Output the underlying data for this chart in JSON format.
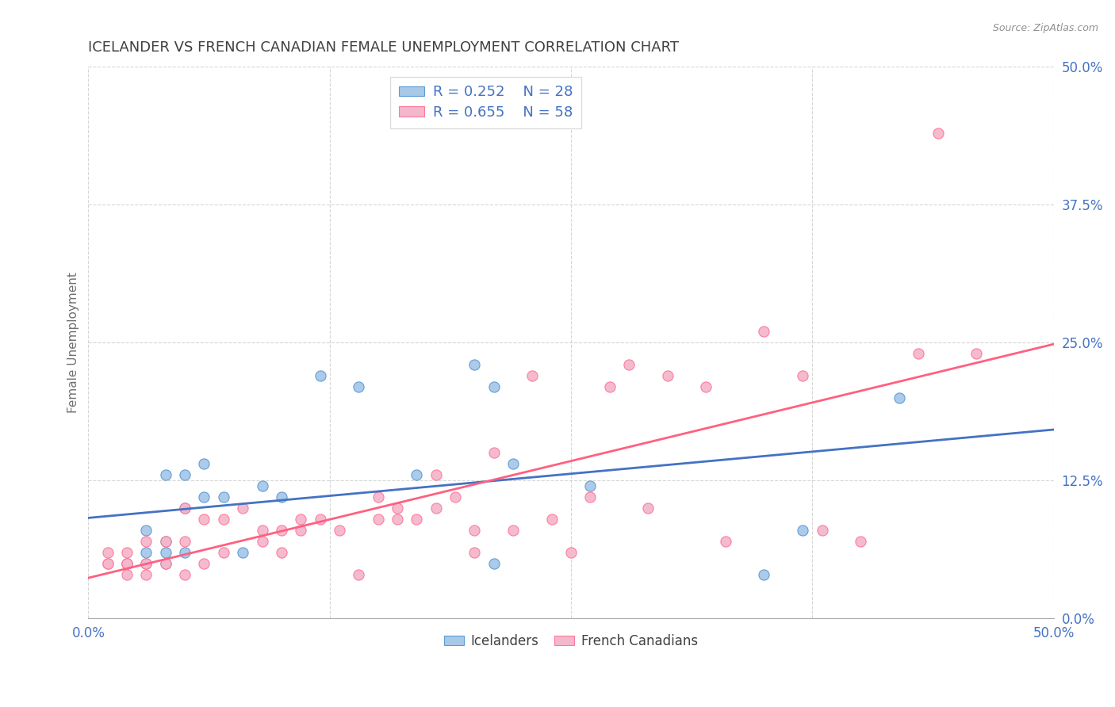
{
  "title": "ICELANDER VS FRENCH CANADIAN FEMALE UNEMPLOYMENT CORRELATION CHART",
  "source": "Source: ZipAtlas.com",
  "ylabel": "Female Unemployment",
  "ytick_labels": [
    "0.0%",
    "12.5%",
    "25.0%",
    "37.5%",
    "50.0%"
  ],
  "ytick_values": [
    0.0,
    0.125,
    0.25,
    0.375,
    0.5
  ],
  "xtick_show": [
    0.0,
    0.5
  ],
  "xtick_all": [
    0.0,
    0.125,
    0.25,
    0.375,
    0.5
  ],
  "xlim": [
    0.0,
    0.5
  ],
  "ylim": [
    0.0,
    0.5
  ],
  "legend_label_blue": "Icelanders",
  "legend_label_pink": "French Canadians",
  "blue_fill_color": "#A8C8E8",
  "pink_fill_color": "#F4B8CC",
  "blue_edge_color": "#5B9BD5",
  "pink_edge_color": "#FF7799",
  "blue_line_color": "#4472C4",
  "pink_line_color": "#FF6080",
  "title_color": "#404040",
  "axis_label_color": "#4472C4",
  "grid_color": "#CCCCCC",
  "background_color": "#FFFFFF",
  "icelander_x": [
    0.02,
    0.03,
    0.03,
    0.03,
    0.04,
    0.04,
    0.04,
    0.04,
    0.05,
    0.05,
    0.05,
    0.06,
    0.06,
    0.07,
    0.08,
    0.09,
    0.1,
    0.12,
    0.14,
    0.17,
    0.2,
    0.21,
    0.21,
    0.22,
    0.26,
    0.35,
    0.37,
    0.42
  ],
  "icelander_y": [
    0.05,
    0.05,
    0.06,
    0.08,
    0.05,
    0.06,
    0.07,
    0.13,
    0.06,
    0.1,
    0.13,
    0.11,
    0.14,
    0.11,
    0.06,
    0.12,
    0.11,
    0.22,
    0.21,
    0.13,
    0.23,
    0.05,
    0.21,
    0.14,
    0.12,
    0.04,
    0.08,
    0.2
  ],
  "french_x": [
    0.01,
    0.01,
    0.01,
    0.02,
    0.02,
    0.02,
    0.02,
    0.03,
    0.03,
    0.03,
    0.04,
    0.04,
    0.05,
    0.05,
    0.05,
    0.06,
    0.06,
    0.07,
    0.07,
    0.08,
    0.09,
    0.09,
    0.1,
    0.1,
    0.11,
    0.11,
    0.12,
    0.13,
    0.14,
    0.15,
    0.15,
    0.16,
    0.16,
    0.17,
    0.18,
    0.18,
    0.19,
    0.2,
    0.2,
    0.21,
    0.22,
    0.23,
    0.24,
    0.25,
    0.26,
    0.27,
    0.28,
    0.29,
    0.3,
    0.32,
    0.33,
    0.35,
    0.37,
    0.38,
    0.4,
    0.43,
    0.44,
    0.46
  ],
  "french_y": [
    0.05,
    0.05,
    0.06,
    0.04,
    0.05,
    0.05,
    0.06,
    0.04,
    0.05,
    0.07,
    0.05,
    0.07,
    0.04,
    0.07,
    0.1,
    0.05,
    0.09,
    0.06,
    0.09,
    0.1,
    0.07,
    0.08,
    0.06,
    0.08,
    0.08,
    0.09,
    0.09,
    0.08,
    0.04,
    0.09,
    0.11,
    0.09,
    0.1,
    0.09,
    0.1,
    0.13,
    0.11,
    0.06,
    0.08,
    0.15,
    0.08,
    0.22,
    0.09,
    0.06,
    0.11,
    0.21,
    0.23,
    0.1,
    0.22,
    0.21,
    0.07,
    0.26,
    0.22,
    0.08,
    0.07,
    0.24,
    0.44,
    0.24
  ]
}
